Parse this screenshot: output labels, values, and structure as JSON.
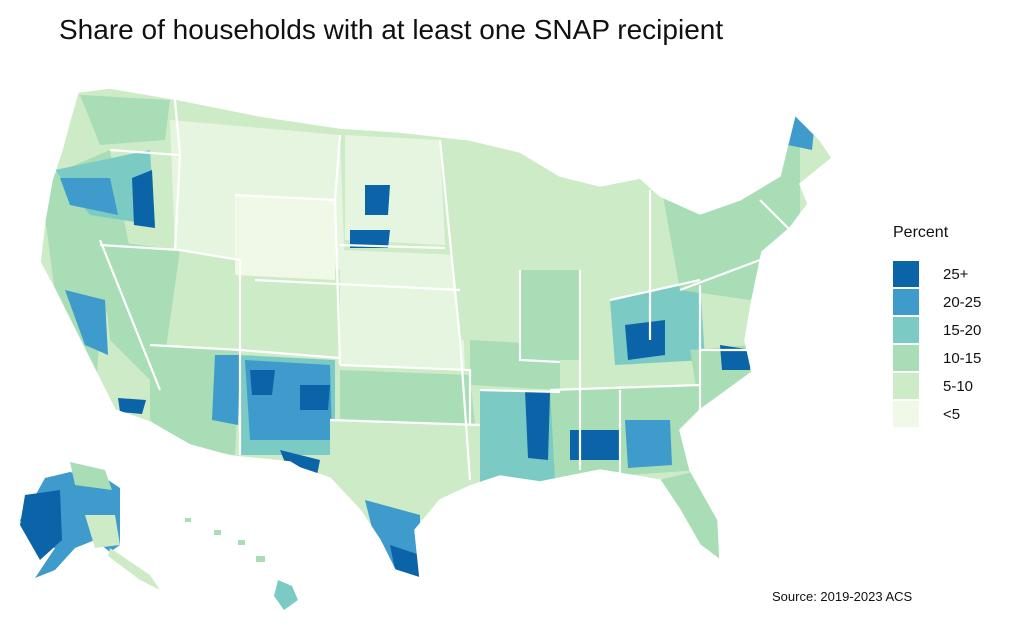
{
  "title": "Share of households with at least one SNAP recipient",
  "legend": {
    "title": "Percent",
    "items": [
      {
        "label": "25+",
        "color": "#0b63a8"
      },
      {
        "label": "20-25",
        "color": "#3e9bcc"
      },
      {
        "label": "15-20",
        "color": "#7bcbc4"
      },
      {
        "label": "10-15",
        "color": "#a8ddb5"
      },
      {
        "label": "5-10",
        "color": "#cdebc6"
      },
      {
        "label": "<5",
        "color": "#f0f9e8"
      }
    ]
  },
  "source": "Source: 2019-2023 ACS"
}
